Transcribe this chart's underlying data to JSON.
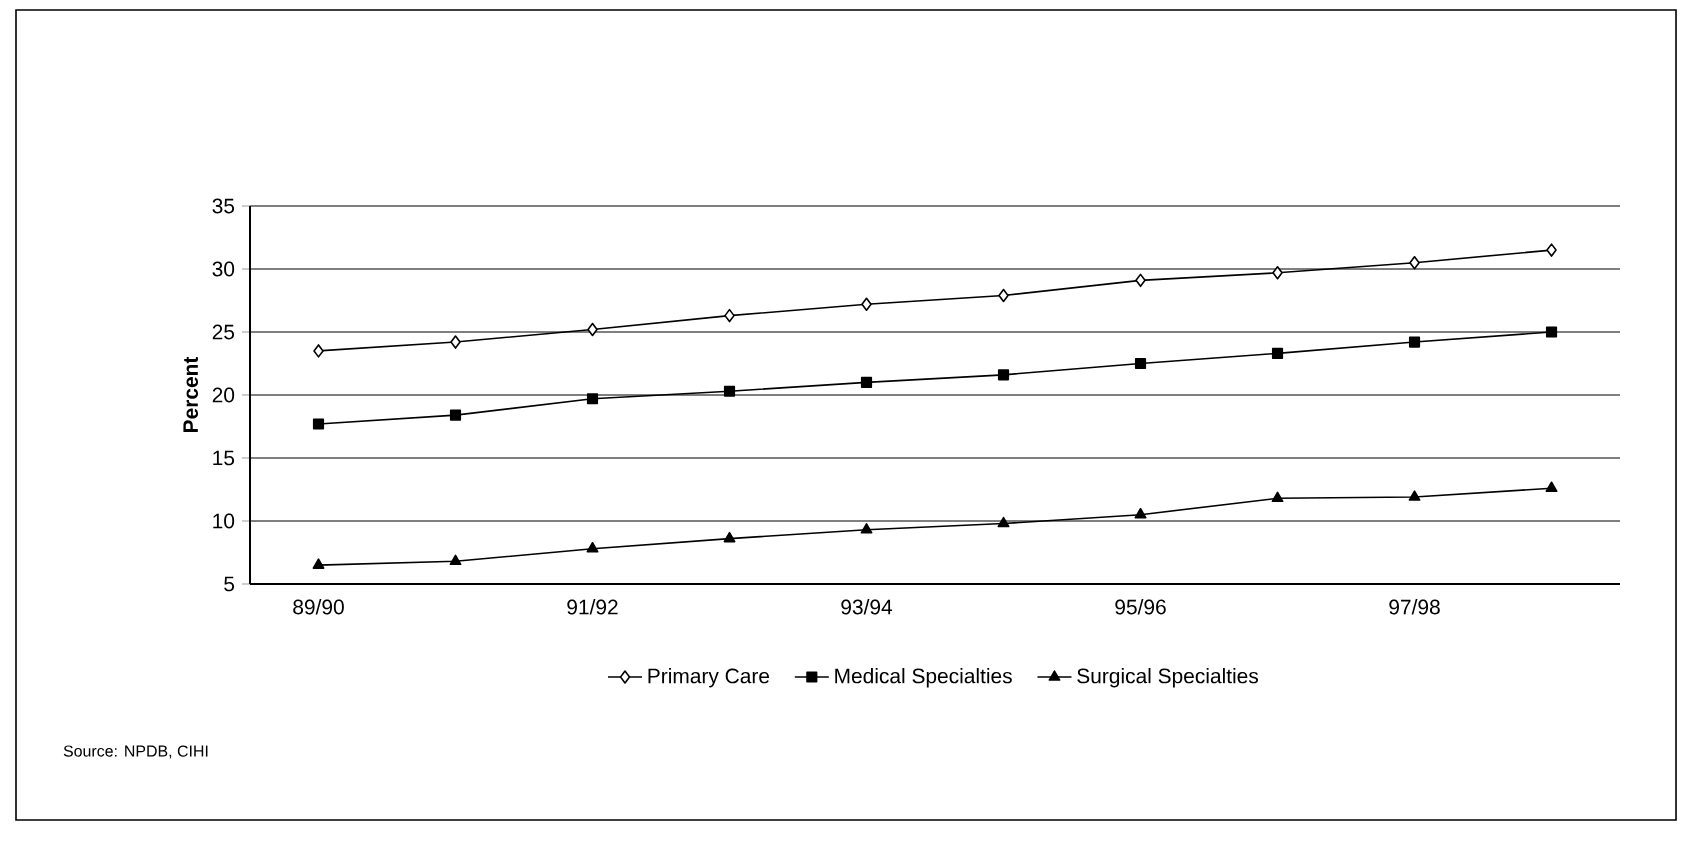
{
  "chart_data": {
    "type": "line",
    "ylabel": "Percent",
    "categories": [
      "89/90",
      null,
      "91/92",
      null,
      "93/94",
      null,
      "95/96",
      null,
      "97/98",
      null
    ],
    "series": [
      {
        "name": "Primary Care",
        "color": "#000000",
        "marker": "diamond",
        "values": [
          23.5,
          24.2,
          25.2,
          26.3,
          27.2,
          27.9,
          29.1,
          29.7,
          30.5,
          31.5
        ]
      },
      {
        "name": "Medical Specialties",
        "color": "#000000",
        "marker": "square",
        "values": [
          17.7,
          18.4,
          19.7,
          20.3,
          21.0,
          21.6,
          22.5,
          23.3,
          24.2,
          25.0
        ]
      },
      {
        "name": "Surgical Specialties",
        "color": "#000000",
        "marker": "triangle",
        "values": [
          6.5,
          6.8,
          7.8,
          8.6,
          9.3,
          9.8,
          10.5,
          11.8,
          11.9,
          12.6
        ]
      }
    ],
    "ylim": [
      5,
      35
    ],
    "yticks": [
      5,
      10,
      15,
      20,
      25,
      30,
      35
    ],
    "grid": "y",
    "legend": "bottom",
    "annotations": [
      "Source: NPDB, CIHI"
    ]
  }
}
